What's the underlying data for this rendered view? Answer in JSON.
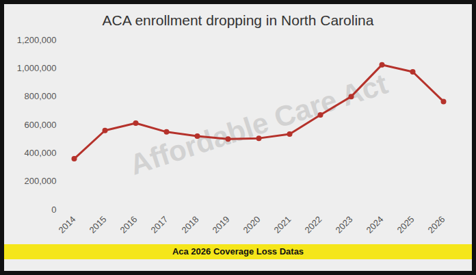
{
  "chart_data": {
    "type": "line",
    "title": "ACA enrollment dropping in North Carolina",
    "caption": "Aca 2026 Coverage Loss Datas",
    "annotations": [
      "Affordable Care Act"
    ],
    "categories": [
      "2014",
      "2015",
      "2016",
      "2017",
      "2018",
      "2019",
      "2020",
      "2021",
      "2022",
      "2023",
      "2024",
      "2025",
      "2026"
    ],
    "values": [
      360000,
      560000,
      612000,
      550000,
      520000,
      500000,
      505000,
      535000,
      670000,
      800000,
      1025000,
      975000,
      765000
    ],
    "color": "#b5322b",
    "marker": "circle",
    "ylim": [
      0,
      1200000
    ],
    "yticks": [
      0,
      {
        "value": 200000,
        "label": "200,000"
      },
      {
        "value": 400000,
        "label": "400,000"
      },
      {
        "value": 600000,
        "label": "600,000"
      },
      {
        "value": 800000,
        "label": "800,000"
      },
      {
        "value": 1000000,
        "label": "1,000,000"
      },
      {
        "value": 1200000,
        "label": "1,200,000"
      }
    ],
    "grid": false
  }
}
